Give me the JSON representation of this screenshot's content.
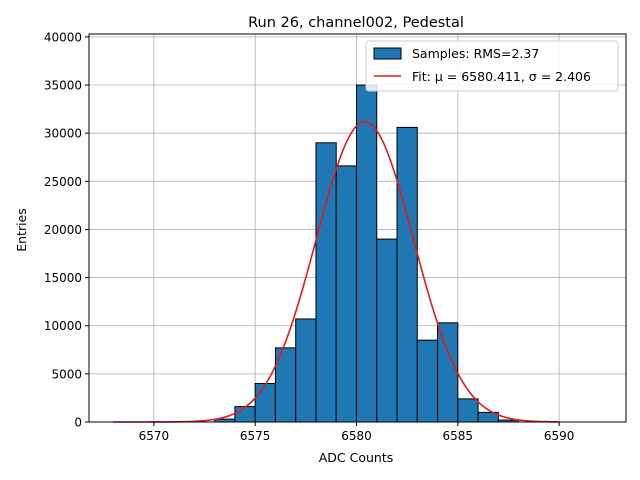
{
  "chart_data": {
    "type": "bar",
    "title": "Run 26, channel002, Pedestal",
    "xlabel": "ADC Counts",
    "ylabel": "Entries",
    "xlim": [
      6566.8,
      6593.3
    ],
    "ylim": [
      0,
      40300
    ],
    "xticks": [
      6570,
      6575,
      6580,
      6585,
      6590
    ],
    "yticks": [
      0,
      5000,
      10000,
      15000,
      20000,
      25000,
      30000,
      35000,
      40000
    ],
    "grid": true,
    "legend_position": "top-right",
    "bins": [
      {
        "x0": 6573,
        "x1": 6574,
        "value": 300
      },
      {
        "x0": 6574,
        "x1": 6575,
        "value": 1600
      },
      {
        "x0": 6575,
        "x1": 6576,
        "value": 4000
      },
      {
        "x0": 6576,
        "x1": 6577,
        "value": 7700
      },
      {
        "x0": 6577,
        "x1": 6578,
        "value": 10700
      },
      {
        "x0": 6578,
        "x1": 6579,
        "value": 29000
      },
      {
        "x0": 6579,
        "x1": 6580,
        "value": 26600
      },
      {
        "x0": 6580,
        "x1": 6581,
        "value": 35000
      },
      {
        "x0": 6581,
        "x1": 6582,
        "value": 19000
      },
      {
        "x0": 6582,
        "x1": 6583,
        "value": 30600
      },
      {
        "x0": 6583,
        "x1": 6584,
        "value": 8500
      },
      {
        "x0": 6584,
        "x1": 6585,
        "value": 10300
      },
      {
        "x0": 6585,
        "x1": 6586,
        "value": 2400
      },
      {
        "x0": 6586,
        "x1": 6587,
        "value": 1000
      },
      {
        "x0": 6587,
        "x1": 6588,
        "value": 200
      }
    ],
    "fit": {
      "mu": 6580.411,
      "sigma": 2.406,
      "amplitude": 31200,
      "x_range": [
        6568,
        6590
      ]
    },
    "legend": [
      {
        "label": "Samples: RMS=2.37",
        "kind": "patch",
        "color": "#1f77b4"
      },
      {
        "label": "Fit: μ = 6580.411, σ = 2.406",
        "kind": "line",
        "color": "#e41a1c"
      }
    ]
  }
}
